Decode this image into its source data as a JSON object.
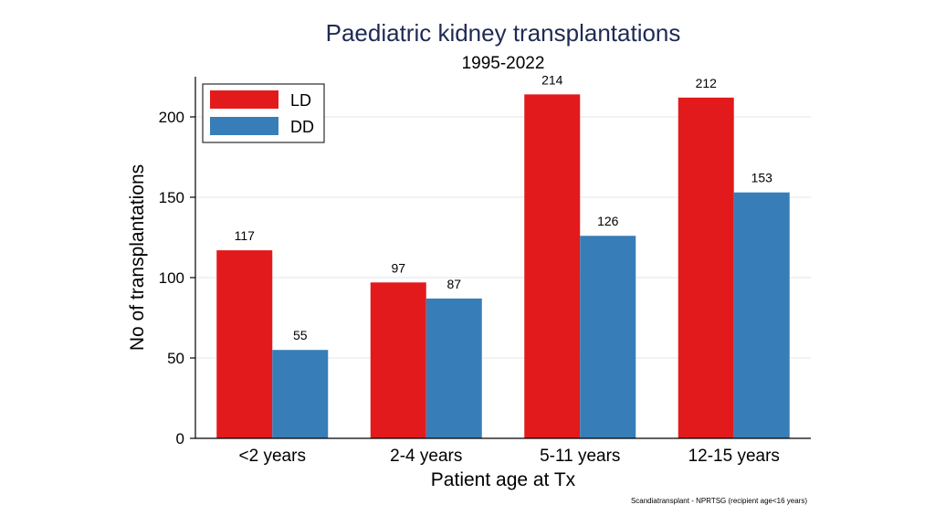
{
  "chart_data": {
    "type": "bar",
    "title": "Paediatric kidney transplantations",
    "subtitle": "1995-2022",
    "xlabel": "Patient age at Tx",
    "ylabel": "No of transplantations",
    "categories": [
      "<2 years",
      "2-4 years",
      "5-11 years",
      "12-15 years"
    ],
    "series": [
      {
        "name": "LD",
        "color": "#e31a1c",
        "values": [
          117,
          97,
          214,
          212
        ]
      },
      {
        "name": "DD",
        "color": "#377eb8",
        "values": [
          55,
          87,
          126,
          153
        ]
      }
    ],
    "ylim": [
      0,
      225
    ],
    "yticks": [
      0,
      50,
      100,
      150,
      200
    ],
    "grid": true,
    "legend": "top-left",
    "source_note": "Scandiatransplant - NPRTSG (recipient age<16 years)"
  }
}
